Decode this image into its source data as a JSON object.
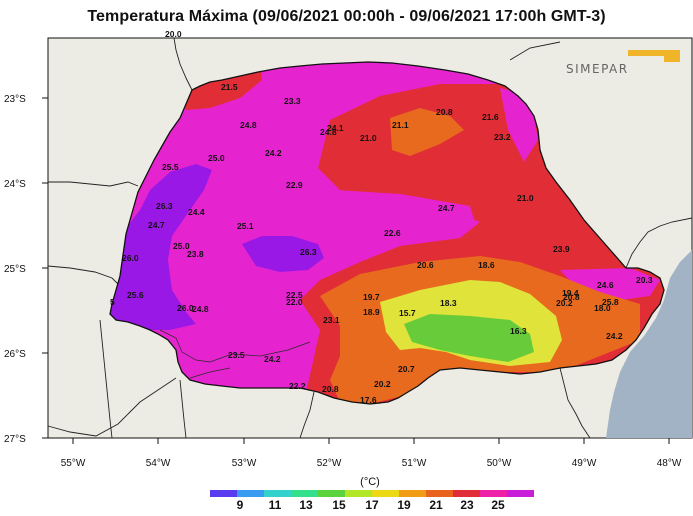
{
  "title": "Temperatura Máxima (09/06/2021 00:00h - 09/06/2021 17:00h GMT-3)",
  "logo_text": "SIMEPAR",
  "axis": {
    "lat_labels": [
      "23°S",
      "24°S",
      "25°S",
      "26°S",
      "27°S"
    ],
    "lon_labels": [
      "55°W",
      "54°W",
      "53°W",
      "52°W",
      "51°W",
      "50°W",
      "49°W",
      "48°W"
    ]
  },
  "colorbar": {
    "unit": "(°C)",
    "ticks": [
      "9",
      "11",
      "13",
      "15",
      "17",
      "19",
      "21",
      "23",
      "25"
    ],
    "colors": [
      "#5a3cf0",
      "#3a9cf0",
      "#34d2cc",
      "#34e08c",
      "#5cd23c",
      "#b4e628",
      "#ecd814",
      "#f29c16",
      "#e8641e",
      "#e02d36",
      "#ee20a8",
      "#c81ed8"
    ]
  },
  "colors": {
    "ocean": "#a2b3c6",
    "land": "#ecebe4",
    "magenta": "#e624cf",
    "violet": "#9a18e6",
    "red": "#e12d36",
    "orange": "#e86a1e",
    "yellow": "#dfe33a",
    "green": "#68cc3a"
  },
  "station_values": [
    {
      "text": "20.0"
    },
    {
      "text": "21.5"
    },
    {
      "text": "23.3"
    },
    {
      "text": "24.8"
    },
    {
      "text": "24.1"
    },
    {
      "text": "24.8"
    },
    {
      "text": "21.0"
    },
    {
      "text": "21.1"
    },
    {
      "text": "20.8"
    },
    {
      "text": "21.6"
    },
    {
      "text": "23.2"
    },
    {
      "text": "25.5"
    },
    {
      "text": "25.0"
    },
    {
      "text": "24.2"
    },
    {
      "text": "22.9"
    },
    {
      "text": "26.3"
    },
    {
      "text": "24.4"
    },
    {
      "text": "24.7"
    },
    {
      "text": "25.1"
    },
    {
      "text": "24.7"
    },
    {
      "text": "21.0"
    },
    {
      "text": "22.6"
    },
    {
      "text": "25.0"
    },
    {
      "text": "23.8"
    },
    {
      "text": "26.0"
    },
    {
      "text": "26.3"
    },
    {
      "text": "23.9"
    },
    {
      "text": "20.6"
    },
    {
      "text": "18.6"
    },
    {
      "text": "24.6"
    },
    {
      "text": "20.3"
    },
    {
      "text": "25.6"
    },
    {
      "text": "22.5"
    },
    {
      "text": "22.0"
    },
    {
      "text": "19.7"
    },
    {
      "text": "18.3"
    },
    {
      "text": "19.4"
    },
    {
      "text": "20.2"
    },
    {
      "text": "20.8"
    },
    {
      "text": "25.8"
    },
    {
      "text": "18.0"
    },
    {
      "text": "26.0"
    },
    {
      "text": "24.8"
    },
    {
      "text": "18.9"
    },
    {
      "text": "15.7"
    },
    {
      "text": "23.1"
    },
    {
      "text": "16.3"
    },
    {
      "text": "24.2"
    },
    {
      "text": "23.5"
    },
    {
      "text": "24.2"
    },
    {
      "text": "20.7"
    },
    {
      "text": "22.2"
    },
    {
      "text": "20.8"
    },
    {
      "text": "20.2"
    },
    {
      "text": "17.6"
    },
    {
      "text": "5"
    }
  ]
}
